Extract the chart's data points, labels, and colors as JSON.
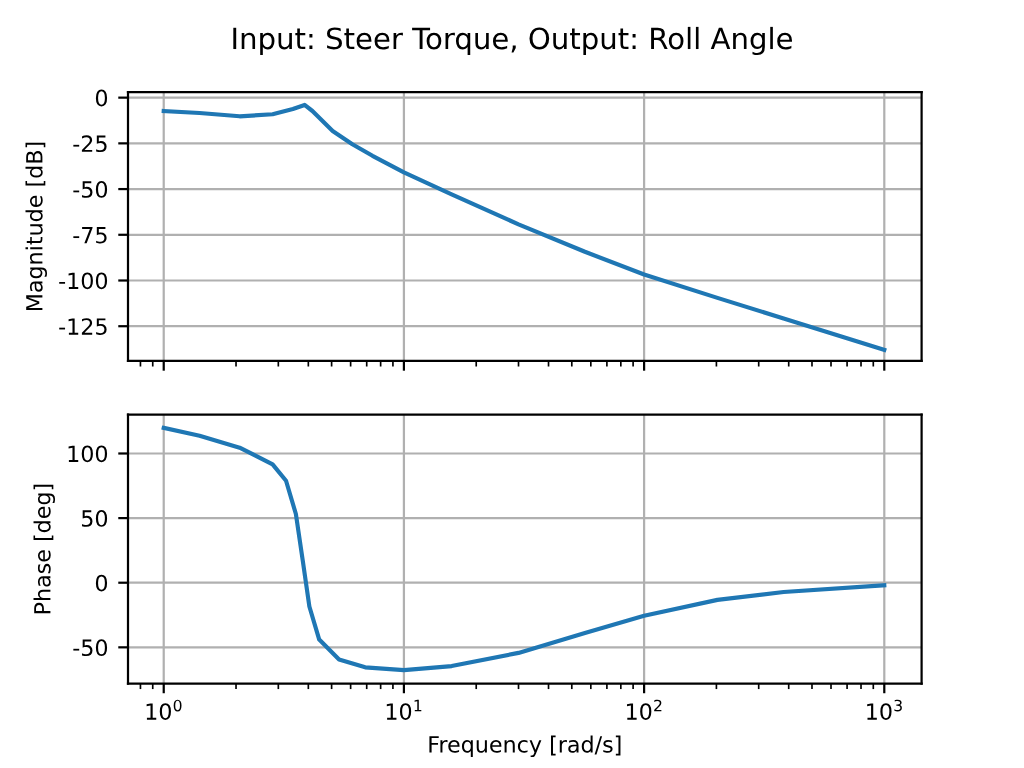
{
  "chart_data": [
    {
      "type": "line",
      "title": "Input: Steer Torque, Output: Roll Angle",
      "ylabel": "Magnitude [dB]",
      "log": "x",
      "grid": true,
      "tick_labels": "y",
      "x": [
        1,
        1.41,
        2.07,
        2.84,
        3.45,
        3.86,
        4.16,
        5.05,
        6.1,
        7.4,
        10,
        15.8,
        30,
        56.7,
        100,
        202,
        381,
        1000
      ],
      "series": [
        {
          "color": "#1f77b4",
          "values": [
            -7.3,
            -8.4,
            -10.2,
            -9.1,
            -6.2,
            -4.0,
            -7.3,
            -18.2,
            -25.5,
            -31.8,
            -40.9,
            -52.9,
            -69.3,
            -84.3,
            -96.7,
            -109.5,
            -120.8,
            -138
          ]
        }
      ],
      "xlim": [
        0.71,
        1430
      ],
      "xticks": [
        {
          "value": 1,
          "label": null
        },
        {
          "value": 10,
          "label": null
        },
        {
          "value": 100,
          "label": null
        },
        {
          "value": 1000,
          "label": null
        }
      ],
      "ylim": [
        -144,
        3
      ],
      "yticks": [
        -125,
        -100,
        -75,
        -50,
        -25,
        0
      ]
    },
    {
      "type": "line",
      "xlabel": "Frequency [rad/s]",
      "ylabel": "Phase [deg]",
      "log": "x",
      "grid": true,
      "x": [
        1,
        1.41,
        2.07,
        2.84,
        3.23,
        3.55,
        3.79,
        4.04,
        4.44,
        5.37,
        6.9,
        10,
        15.8,
        30,
        56.7,
        100,
        202,
        381,
        1000
      ],
      "series": [
        {
          "color": "#1f77b4",
          "values": [
            119.8,
            113.7,
            104.5,
            91.6,
            78.9,
            53.2,
            17.4,
            -18.4,
            -44,
            -59.4,
            -65.5,
            -67.6,
            -64.5,
            -54.3,
            -38.9,
            -25.6,
            -13.3,
            -7.2,
            -2
          ]
        }
      ],
      "xlim": [
        0.71,
        1430
      ],
      "xticks": [
        {
          "value": 1,
          "label": "10$^{0}$"
        },
        {
          "value": 10,
          "label": "10$^{1}$"
        },
        {
          "value": 100,
          "label": "10$^{2}$"
        },
        {
          "value": 1000,
          "label": "10$^{3}$"
        }
      ],
      "ylim": [
        -78,
        130
      ],
      "yticks": [
        -50,
        0,
        50,
        100
      ]
    }
  ]
}
